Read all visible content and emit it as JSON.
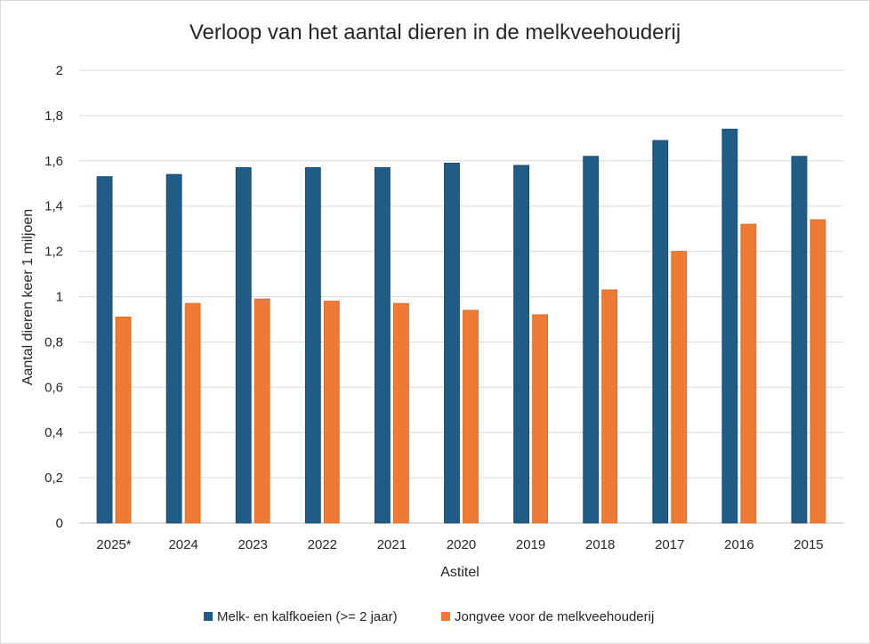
{
  "chart_data": {
    "type": "bar",
    "title": "Verloop van het aantal dieren in de melkveehouderij",
    "xlabel": "Astitel",
    "ylabel": "Aantal dieren keer 1 miljoen",
    "categories": [
      "2025*",
      "2024",
      "2023",
      "2022",
      "2021",
      "2020",
      "2019",
      "2018",
      "2017",
      "2016",
      "2015"
    ],
    "series": [
      {
        "name": "Melk- en kalfkoeien (>= 2 jaar)",
        "color": "#1f5d86",
        "values": [
          1.53,
          1.54,
          1.57,
          1.57,
          1.57,
          1.59,
          1.58,
          1.62,
          1.69,
          1.74,
          1.62
        ]
      },
      {
        "name": "Jongvee voor de melkveehouderij",
        "color": "#ee7a34",
        "values": [
          0.91,
          0.97,
          0.99,
          0.98,
          0.97,
          0.94,
          0.92,
          1.03,
          1.2,
          1.32,
          1.34
        ]
      }
    ],
    "ylim": [
      0,
      2
    ],
    "yticks": [
      "0",
      "0,2",
      "0,4",
      "0,6",
      "0,8",
      "1",
      "1,2",
      "1,4",
      "1,6",
      "1,8",
      "2"
    ],
    "grid": true,
    "legend_position": "bottom"
  }
}
